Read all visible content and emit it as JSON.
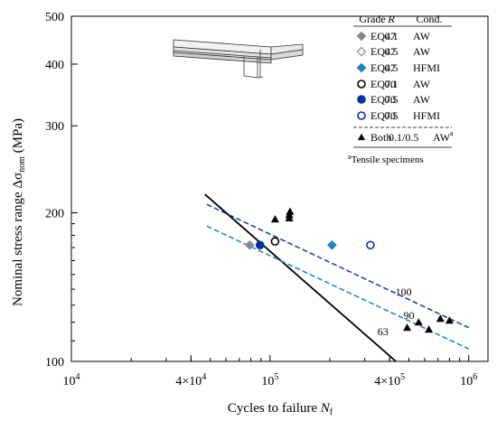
{
  "chart_data": {
    "type": "scatter",
    "xlabel": "Cycles to failure",
    "xlabel_symbol": "N",
    "xlabel_sub": "f",
    "ylabel": "Nominal stress range Δσ",
    "ylabel_sub": "nom",
    "ylabel_unit": "(MPa)",
    "x_scale": "log",
    "y_scale": "log",
    "xlim": [
      10000,
      1250000
    ],
    "ylim": [
      100,
      500
    ],
    "x_ticks": [
      {
        "value": 10000,
        "base": "10",
        "exp": "4"
      },
      {
        "value": 40000,
        "base": "4×10",
        "exp": "4"
      },
      {
        "value": 100000,
        "base": "10",
        "exp": "5"
      },
      {
        "value": 400000,
        "base": "4×10",
        "exp": "5"
      },
      {
        "value": 1000000,
        "base": "10",
        "exp": "6"
      }
    ],
    "x_minor_ticks": [
      20000,
      30000,
      40000,
      50000,
      60000,
      70000,
      80000,
      90000,
      200000,
      300000,
      400000,
      500000,
      600000,
      700000,
      800000,
      900000
    ],
    "y_ticks": [
      {
        "value": 100,
        "label": "100"
      },
      {
        "value": 200,
        "label": "200"
      },
      {
        "value": 300,
        "label": "300"
      },
      {
        "value": 400,
        "label": "400"
      },
      {
        "value": 500,
        "label": "500"
      }
    ],
    "y_minor_ticks": [
      110,
      120,
      130,
      140,
      150,
      160,
      170,
      180,
      190
    ],
    "grid": false,
    "legend": {
      "placement": "top-right",
      "header": {
        "grade": "Grade",
        "r": "R",
        "cond": "Cond."
      },
      "footnote_mark": "a",
      "footnote": "Tensile specimens"
    },
    "series": [
      {
        "name": "EQ47",
        "r": "0.1",
        "cond": "AW",
        "marker": "diamond",
        "fill": "#888888",
        "stroke": "#888888",
        "points": [
          [
            79000,
            172
          ]
        ]
      },
      {
        "name": "EQ47",
        "r": "0.5",
        "cond": "AW",
        "marker": "diamond",
        "fill": "#ffffff",
        "stroke": "#888888",
        "points": []
      },
      {
        "name": "EQ47",
        "r": "0.5",
        "cond": "HFMI",
        "marker": "diamond",
        "fill": "#1f82c0",
        "stroke": "#1f82c0",
        "points": [
          [
            205000,
            172
          ]
        ]
      },
      {
        "name": "EQ70",
        "r": "0.1",
        "cond": "AW",
        "marker": "circle",
        "fill": "#ffffff",
        "stroke": "#000000",
        "points": [
          [
            106000,
            175
          ]
        ]
      },
      {
        "name": "EQ70",
        "r": "0.5",
        "cond": "AW",
        "marker": "circle",
        "fill": "#0033a0",
        "stroke": "#0033a0",
        "points": [
          [
            89000,
            172
          ]
        ]
      },
      {
        "name": "EQ70",
        "r": "0.5",
        "cond": "HFMI",
        "marker": "circle",
        "fill": "#ffffff",
        "stroke": "#0033a0",
        "points": [
          [
            320000,
            172
          ]
        ]
      },
      {
        "name": "Both",
        "r": "0.1/0.5",
        "cond": "AW",
        "cond_sup": "a",
        "marker": "triangle",
        "fill": "#000000",
        "stroke": "#000000",
        "points": [
          [
            106000,
            194
          ],
          [
            125000,
            195
          ],
          [
            125000,
            198
          ],
          [
            126000,
            201
          ],
          [
            490000,
            117
          ],
          [
            560000,
            120
          ],
          [
            630000,
            116
          ],
          [
            720000,
            122
          ],
          [
            800000,
            121
          ]
        ]
      }
    ],
    "lines": [
      {
        "label": "63",
        "color": "#000000",
        "dash": "solid",
        "from": [
          47000,
          218
        ],
        "to": [
          430000,
          100
        ],
        "label_at": [
          370000,
          113
        ]
      },
      {
        "label": "100",
        "color": "#1a3aa0",
        "dash": "dashed",
        "from": [
          48000,
          208
        ],
        "to": [
          1000000,
          117
        ],
        "label_at": [
          470000,
          136
        ]
      },
      {
        "label": "90",
        "color": "#1f82c0",
        "dash": "dashed",
        "from": [
          48000,
          188
        ],
        "to": [
          1000000,
          106
        ],
        "label_at": [
          500000,
          122
        ]
      }
    ]
  }
}
